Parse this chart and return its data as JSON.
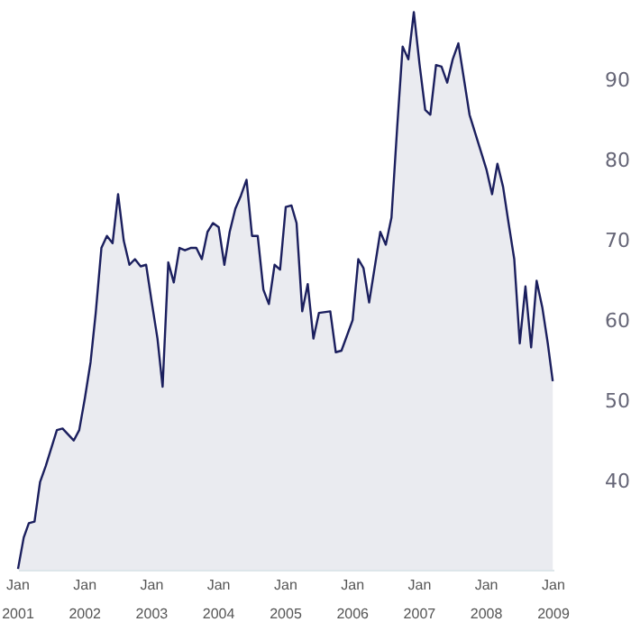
{
  "chart_data": {
    "type": "area",
    "x": [
      "2001-01",
      "2001-02",
      "2001-03",
      "2001-04",
      "2001-05",
      "2001-06",
      "2001-08",
      "2001-09",
      "2001-11",
      "2001-12",
      "2002-01",
      "2002-02",
      "2002-03",
      "2002-04",
      "2002-05",
      "2002-06",
      "2002-07",
      "2002-08",
      "2002-09",
      "2002-10",
      "2002-11",
      "2002-12",
      "2003-01",
      "2003-02",
      "2003-03",
      "2003-04",
      "2003-05",
      "2003-06",
      "2003-07",
      "2003-08",
      "2003-09",
      "2003-10",
      "2003-11",
      "2003-12",
      "2004-01",
      "2004-02",
      "2004-03",
      "2004-04",
      "2004-05",
      "2004-06",
      "2004-07",
      "2004-08",
      "2004-09",
      "2004-10",
      "2004-11",
      "2004-12",
      "2005-01",
      "2005-02",
      "2005-03",
      "2005-04",
      "2005-05",
      "2005-06",
      "2005-07",
      "2005-09",
      "2005-10",
      "2005-11",
      "2006-01",
      "2006-02",
      "2006-03",
      "2006-04",
      "2006-06",
      "2006-07",
      "2006-08",
      "2006-09",
      "2006-10",
      "2006-11",
      "2006-12",
      "2007-01",
      "2007-02",
      "2007-03",
      "2007-04",
      "2007-05",
      "2007-06",
      "2007-07",
      "2007-08",
      "2007-10",
      "2007-12",
      "2008-01",
      "2008-02",
      "2008-03",
      "2008-04",
      "2008-05",
      "2008-06",
      "2008-07",
      "2008-08",
      "2008-09",
      "2008-10",
      "2008-11",
      "2008-12",
      "2008-12-28"
    ],
    "series": [
      {
        "color": "#1b1f5e",
        "values": [
          29.1,
          33.0,
          34.8,
          35.0,
          39.9,
          41.9,
          46.4,
          46.6,
          45.1,
          46.4,
          50.4,
          54.9,
          61.0,
          69.1,
          70.6,
          69.7,
          75.8,
          70.0,
          67.0,
          67.7,
          66.8,
          67.0,
          62.3,
          57.8,
          51.8,
          67.3,
          64.8,
          69.1,
          68.8,
          69.1,
          69.1,
          67.7,
          71.1,
          72.2,
          71.7,
          67.0,
          71.1,
          74.0,
          75.6,
          77.6,
          70.6,
          70.6,
          63.9,
          62.1,
          67.0,
          66.4,
          74.2,
          74.4,
          72.2,
          61.2,
          64.6,
          57.8,
          61.0,
          61.2,
          56.1,
          56.3,
          60.1,
          67.7,
          66.6,
          62.3,
          71.1,
          69.5,
          72.9,
          84.1,
          94.2,
          92.6,
          98.5,
          92.0,
          86.3,
          85.7,
          91.9,
          91.7,
          89.7,
          92.6,
          94.6,
          85.7,
          81.2,
          78.9,
          75.8,
          79.6,
          76.7,
          72.2,
          67.7,
          57.2,
          64.3,
          56.7,
          65.0,
          61.7,
          57.2,
          52.5
        ]
      }
    ],
    "xlim": [
      "2001-01",
      "2009-01"
    ],
    "xticks": [
      {
        "value": "2001-01",
        "label": "Jan\n2001"
      },
      {
        "value": "2002-01",
        "label": "Jan\n2002"
      },
      {
        "value": "2003-01",
        "label": "Jan\n2003"
      },
      {
        "value": "2004-01",
        "label": "Jan\n2004"
      },
      {
        "value": "2005-01",
        "label": "Jan\n2005"
      },
      {
        "value": "2006-01",
        "label": "Jan\n2006"
      },
      {
        "value": "2007-01",
        "label": "Jan\n2007"
      },
      {
        "value": "2008-01",
        "label": "Jan\n2008"
      },
      {
        "value": "2009-01",
        "label": "Jan\n2009"
      }
    ],
    "ylim": [
      29,
      100
    ],
    "yticks": [
      40,
      50,
      60,
      70,
      80,
      90
    ]
  }
}
